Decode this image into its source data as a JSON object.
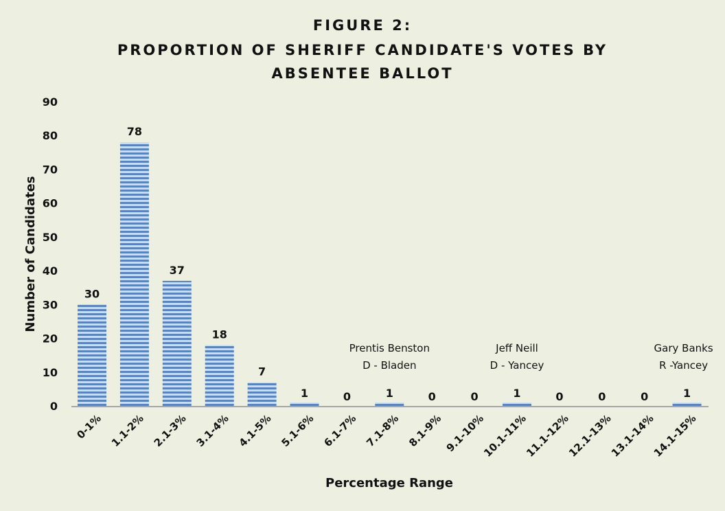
{
  "chart_data": {
    "type": "bar",
    "title_lines": [
      "FIGURE 2:",
      "PROPORTION OF SHERIFF CANDIDATE'S VOTES BY",
      "ABSENTEE BALLOT"
    ],
    "xlabel": "Percentage Range",
    "ylabel": "Number of Candidates",
    "ylim": [
      0,
      90
    ],
    "yticks": [
      0,
      10,
      20,
      30,
      40,
      50,
      60,
      70,
      80,
      90
    ],
    "categories": [
      "0-1%",
      "1.1-2%",
      "2.1-3%",
      "3.1-4%",
      "4.1-5%",
      "5.1-6%",
      "6.1-7%",
      "7.1-8%",
      "8.1-9%",
      "9.1-10%",
      "10.1-11%",
      "11.1-12%",
      "12.1-13%",
      "13.1-14%",
      "14.1-15%"
    ],
    "values": [
      30,
      78,
      37,
      18,
      7,
      1,
      0,
      1,
      0,
      0,
      1,
      0,
      0,
      0,
      1
    ],
    "annotations": [
      {
        "category": "7.1-8%",
        "lines": [
          "Prentis Benston",
          "D - Bladen"
        ]
      },
      {
        "category": "10.1-11%",
        "lines": [
          "Jeff Neill",
          "D - Yancey"
        ]
      },
      {
        "category": "14.1-15%",
        "lines": [
          "Gary Banks",
          "R -Yancey"
        ]
      }
    ],
    "grid": false,
    "legend": "none",
    "colors": {
      "bar_dark": "#5A84BC",
      "bar_light": "#C9DCF2",
      "axis": "#A6A6A6",
      "background": "#EDF0E1"
    }
  }
}
